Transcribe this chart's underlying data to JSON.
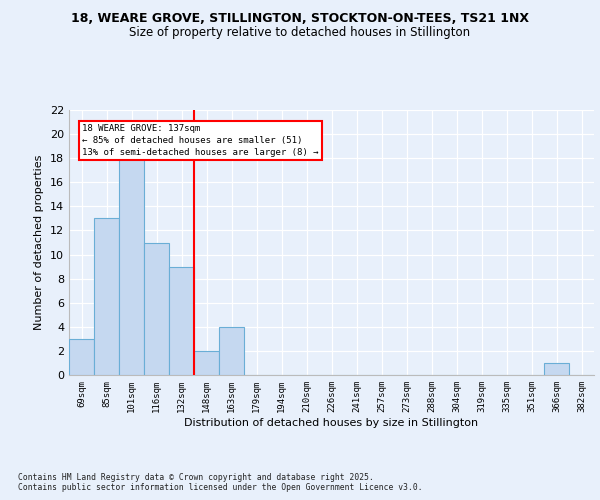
{
  "title_line1": "18, WEARE GROVE, STILLINGTON, STOCKTON-ON-TEES, TS21 1NX",
  "title_line2": "Size of property relative to detached houses in Stillington",
  "xlabel": "Distribution of detached houses by size in Stillington",
  "ylabel": "Number of detached properties",
  "categories": [
    "69sqm",
    "85sqm",
    "101sqm",
    "116sqm",
    "132sqm",
    "148sqm",
    "163sqm",
    "179sqm",
    "194sqm",
    "210sqm",
    "226sqm",
    "241sqm",
    "257sqm",
    "273sqm",
    "288sqm",
    "304sqm",
    "319sqm",
    "335sqm",
    "351sqm",
    "366sqm",
    "382sqm"
  ],
  "values": [
    3,
    13,
    18,
    11,
    9,
    2,
    4,
    0,
    0,
    0,
    0,
    0,
    0,
    0,
    0,
    0,
    0,
    0,
    0,
    1,
    0
  ],
  "bar_color": "#c5d8f0",
  "bar_edge_color": "#6aaed6",
  "annotation_line1": "18 WEARE GROVE: 137sqm",
  "annotation_line2": "← 85% of detached houses are smaller (51)",
  "annotation_line3": "13% of semi-detached houses are larger (8) →",
  "vline_x": 4.5,
  "ylim": [
    0,
    22
  ],
  "yticks": [
    0,
    2,
    4,
    6,
    8,
    10,
    12,
    14,
    16,
    18,
    20,
    22
  ],
  "footer": "Contains HM Land Registry data © Crown copyright and database right 2025.\nContains public sector information licensed under the Open Government Licence v3.0.",
  "fig_bg_color": "#e8f0fb",
  "plot_bg_color": "#e8f0fb",
  "grid_color": "#ffffff",
  "title1_fontsize": 9,
  "title2_fontsize": 8.5
}
